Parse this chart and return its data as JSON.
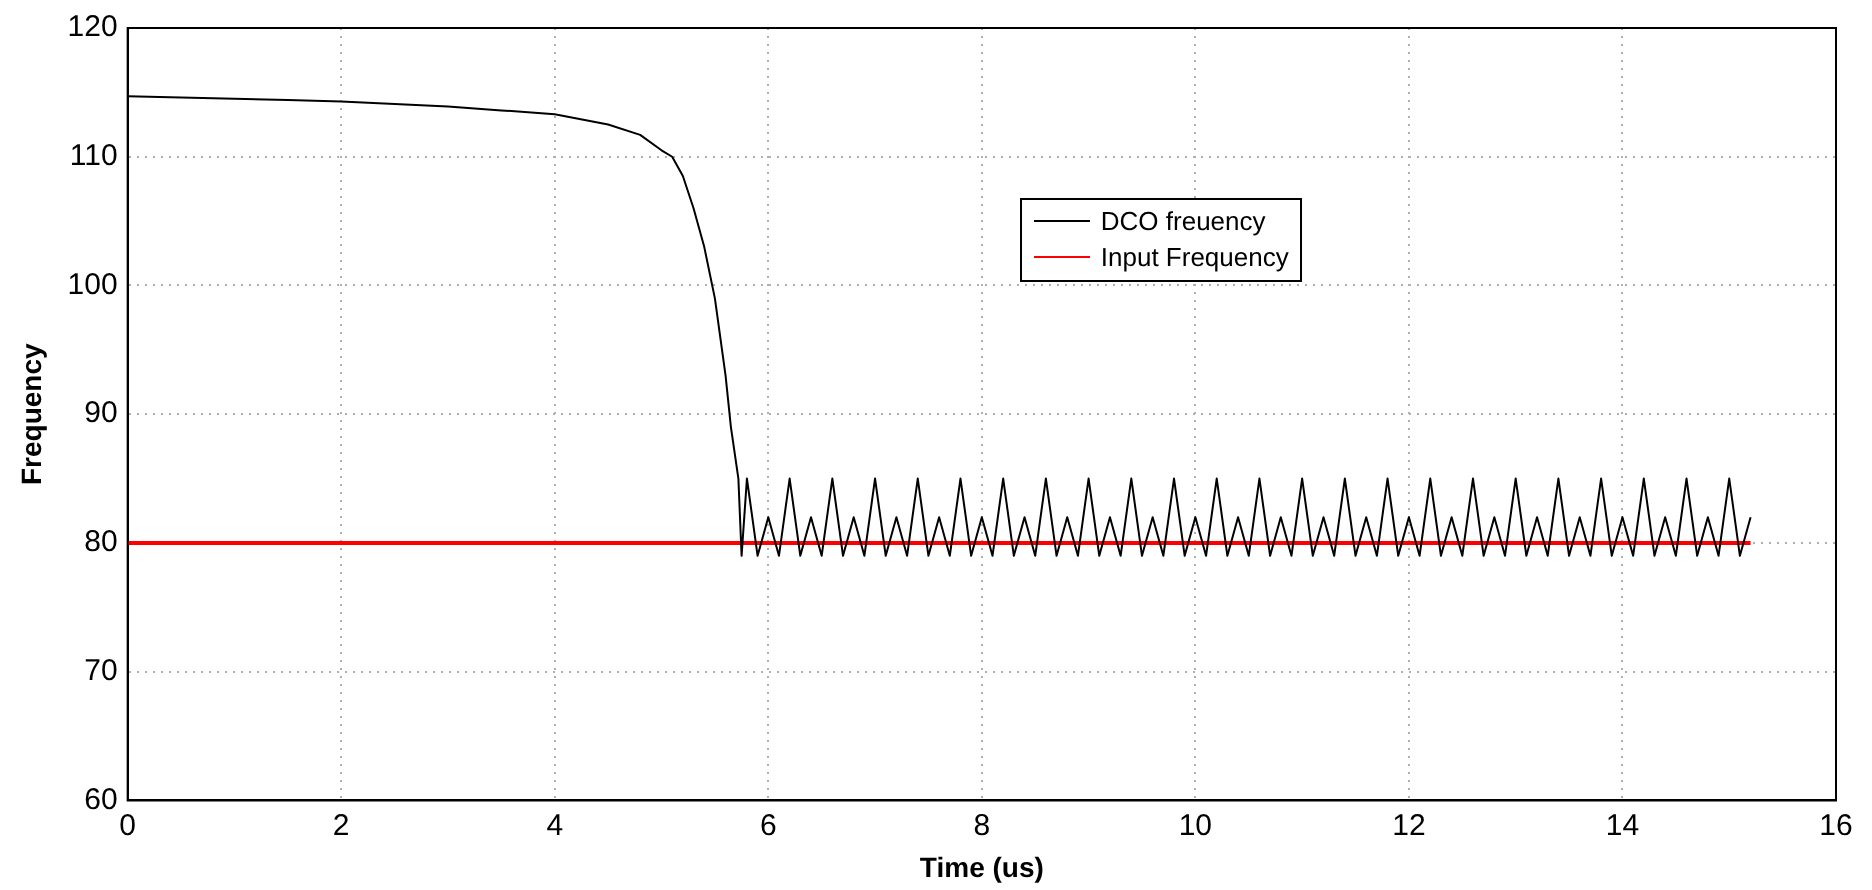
{
  "chart_data": {
    "type": "line",
    "xlabel": "Time (us)",
    "ylabel": "Frequency",
    "xlim": [
      0,
      16
    ],
    "xticks": [
      0,
      2,
      4,
      6,
      8,
      10,
      12,
      14,
      16
    ],
    "ylim": [
      60,
      120
    ],
    "yticks": [
      60,
      70,
      80,
      90,
      100,
      110,
      120
    ],
    "grid": true,
    "legend": "top",
    "marker": "none",
    "line_style": "solid",
    "series": [
      {
        "name": "DCO freuency",
        "color": "#000000",
        "x": [
          0,
          0.5,
          1,
          1.5,
          2,
          2.5,
          3,
          3.5,
          4,
          4.5,
          4.8,
          5,
          5.1,
          5.2,
          5.3,
          5.4,
          5.5,
          5.6,
          5.65,
          5.72,
          5.75,
          5.8,
          5.9,
          6.0,
          6.1,
          6.2,
          6.3,
          6.4,
          6.5,
          6.6,
          6.7,
          6.8,
          6.9,
          7.0,
          7.1,
          7.2,
          7.3,
          7.4,
          7.5,
          7.6,
          7.7,
          7.8,
          7.9,
          8.0,
          8.1,
          8.2,
          8.3,
          8.4,
          8.5,
          8.6,
          8.7,
          8.8,
          8.9,
          9.0,
          9.1,
          9.2,
          9.3,
          9.4,
          9.5,
          9.6,
          9.7,
          9.8,
          9.9,
          10.0,
          10.1,
          10.2,
          10.3,
          10.4,
          10.5,
          10.6,
          10.7,
          10.8,
          10.9,
          11.0,
          11.1,
          11.2,
          11.3,
          11.4,
          11.5,
          11.6,
          11.7,
          11.8,
          11.9,
          12.0,
          12.1,
          12.2,
          12.3,
          12.4,
          12.5,
          12.6,
          12.7,
          12.8,
          12.9,
          13.0,
          13.1,
          13.2,
          13.3,
          13.4,
          13.5,
          13.6,
          13.7,
          13.8,
          13.9,
          14.0,
          14.1,
          14.2,
          14.3,
          14.4,
          14.5,
          14.6,
          14.7,
          14.8,
          14.9,
          15.0,
          15.1,
          15.2
        ],
        "values": [
          114.7,
          114.6,
          114.5,
          114.4,
          114.3,
          114.1,
          113.9,
          113.6,
          113.3,
          112.5,
          111.7,
          110.5,
          110,
          108.5,
          106,
          103,
          99,
          93,
          89,
          85,
          79,
          85,
          79,
          82,
          79,
          85,
          79,
          82,
          79,
          85,
          79,
          82,
          79,
          85,
          79,
          82,
          79,
          85,
          79,
          82,
          79,
          85,
          79,
          82,
          79,
          85,
          79,
          82,
          79,
          85,
          79,
          82,
          79,
          85,
          79,
          82,
          79,
          85,
          79,
          82,
          79,
          85,
          79,
          82,
          79,
          85,
          79,
          82,
          79,
          85,
          79,
          82,
          79,
          85,
          79,
          82,
          79,
          85,
          79,
          82,
          79,
          85,
          79,
          82,
          79,
          85,
          79,
          82,
          79,
          85,
          79,
          82,
          79,
          85,
          79,
          82,
          79,
          85,
          79,
          82,
          79,
          85,
          79,
          82,
          79,
          85,
          79,
          82,
          79,
          85,
          79,
          82,
          79,
          85,
          79,
          82
        ]
      },
      {
        "name": "Input Frequency",
        "color": "#ff0000",
        "x": [
          0,
          15.2
        ],
        "values": [
          80,
          80
        ]
      }
    ]
  }
}
